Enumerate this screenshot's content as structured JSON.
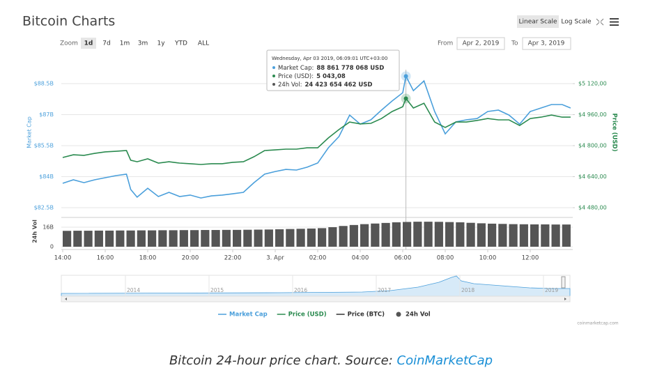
{
  "header": {
    "title": "Bitcoin Charts",
    "scales": [
      "Linear Scale",
      "Log Scale"
    ],
    "zoom_label": "Zoom",
    "zoom": [
      "1d",
      "7d",
      "1m",
      "3m",
      "1y",
      "YTD",
      "ALL"
    ],
    "from_label": "From",
    "from": "Apr 2, 2019",
    "to_label": "To",
    "to": "Apr 3, 2019"
  },
  "chart_data": {
    "type": "line",
    "ylabel": "Market Cap",
    "y2label": "Price (USD)",
    "y3label": "24h Vol",
    "x": [
      0,
      0.5,
      1,
      1.5,
      2,
      2.5,
      3,
      3.2,
      3.5,
      4,
      4.5,
      5,
      5.5,
      6,
      6.5,
      7,
      7.5,
      8,
      8.5,
      9,
      9.5,
      10,
      10.5,
      11,
      11.5,
      12,
      12.5,
      13,
      13.5,
      14,
      14.5,
      15,
      15.5,
      16,
      16.15,
      16.5,
      17,
      17.5,
      18,
      18.5,
      19,
      19.5,
      20,
      20.5,
      21,
      21.5,
      22,
      22.5,
      23,
      23.5,
      23.9
    ],
    "xlim": [
      0,
      24
    ],
    "xticks": [
      {
        "value": 0,
        "label": "14:00"
      },
      {
        "value": 2,
        "label": "16:00"
      },
      {
        "value": 4,
        "label": "18:00"
      },
      {
        "value": 6,
        "label": "20:00"
      },
      {
        "value": 8,
        "label": "22:00"
      },
      {
        "value": 10,
        "label": "3. Apr"
      },
      {
        "value": 12,
        "label": "02:00"
      },
      {
        "value": 14,
        "label": "04:00"
      },
      {
        "value": 16,
        "label": "06:00"
      },
      {
        "value": 18,
        "label": "08:00"
      },
      {
        "value": 20,
        "label": "10:00"
      },
      {
        "value": 22,
        "label": "12:00"
      }
    ],
    "ylim": [
      82.5,
      88.5
    ],
    "yticks": [
      {
        "value": 82.5,
        "label": "$82.5B"
      },
      {
        "value": 84,
        "label": "$84B"
      },
      {
        "value": 85.5,
        "label": "$85.5B"
      },
      {
        "value": 87,
        "label": "$87B"
      },
      {
        "value": 88.5,
        "label": "$88.5B"
      }
    ],
    "y2lim": [
      4480,
      5120
    ],
    "y2ticks": [
      {
        "value": 4480,
        "label": "$4 480,00"
      },
      {
        "value": 4640,
        "label": "$4 640,00"
      },
      {
        "value": 4800,
        "label": "$4 800,00"
      },
      {
        "value": 4960,
        "label": "$4 960,00"
      },
      {
        "value": 5120,
        "label": "$5 120,00"
      }
    ],
    "y3lim": [
      0,
      16
    ],
    "y3ticks": [
      0,
      {
        "value": 16,
        "label": "16B"
      }
    ],
    "grid": true,
    "series": [
      {
        "name": "Market Cap",
        "color": "#4a9fdb",
        "axis": "y",
        "values": [
          83.68,
          83.85,
          83.71,
          83.85,
          83.95,
          84.05,
          84.12,
          83.38,
          83.01,
          83.44,
          83.04,
          83.24,
          83.04,
          83.11,
          82.97,
          83.07,
          83.11,
          83.17,
          83.24,
          83.71,
          84.12,
          84.25,
          84.35,
          84.32,
          84.46,
          84.66,
          85.4,
          85.94,
          86.98,
          86.54,
          86.75,
          87.22,
          87.66,
          88.06,
          88.86,
          88.16,
          88.63,
          87.15,
          86.07,
          86.65,
          86.75,
          86.81,
          87.15,
          87.22,
          86.98,
          86.54,
          87.15,
          87.32,
          87.49,
          87.49,
          87.32
        ]
      },
      {
        "name": "Price (USD)",
        "color": "#2a8a4f",
        "axis": "y2",
        "values": [
          4739,
          4753,
          4750,
          4760,
          4768,
          4771,
          4775,
          4725,
          4717,
          4732,
          4710,
          4717,
          4710,
          4707,
          4703,
          4707,
          4707,
          4714,
          4717,
          4743,
          4775,
          4778,
          4782,
          4782,
          4789,
          4789,
          4840,
          4883,
          4922,
          4912,
          4915,
          4940,
          4976,
          5001,
          5043.08,
          4994,
          5019,
          4922,
          4894,
          4922,
          4922,
          4930,
          4940,
          4933,
          4933,
          4904,
          4940,
          4947,
          4958,
          4947,
          4947
        ]
      },
      {
        "name": "Price (BTC)",
        "color": "#333333"
      },
      {
        "name": "24h Vol",
        "color": "#555555",
        "axis": "y3",
        "type": "bar",
        "x": [
          0,
          0.5,
          1,
          1.5,
          2,
          2.5,
          3,
          3.5,
          4,
          4.5,
          5,
          5.5,
          6,
          6.5,
          7,
          7.5,
          8,
          8.5,
          9,
          9.5,
          10,
          10.5,
          11,
          11.5,
          12,
          12.5,
          13,
          13.5,
          14,
          14.5,
          15,
          15.5,
          16,
          16.5,
          17,
          17.5,
          18,
          18.5,
          19,
          19.5,
          20,
          20.5,
          21,
          21.5,
          22,
          22.5,
          23,
          23.5
        ],
        "values": [
          13.0,
          13.1,
          13.1,
          13.2,
          13.2,
          13.3,
          13.3,
          13.4,
          13.4,
          13.5,
          13.5,
          13.6,
          13.6,
          13.7,
          13.7,
          13.8,
          13.8,
          13.9,
          14.0,
          14.1,
          14.3,
          14.5,
          14.7,
          14.9,
          15.2,
          16.0,
          17.0,
          17.8,
          18.5,
          19.0,
          19.5,
          20.0,
          20.3,
          20.5,
          20.5,
          20.4,
          20.2,
          20.0,
          19.6,
          19.2,
          18.9,
          18.7,
          18.5,
          18.4,
          18.3,
          18.3,
          18.2,
          18.2
        ]
      }
    ],
    "tooltip": {
      "point": 34,
      "date": "Wednesday, Apr 03 2019, 06:09:01 UTC+03:00",
      "items": [
        {
          "label": "Market Cap:",
          "value": "88 861 778 068 USD"
        },
        {
          "label": "Price (USD):",
          "value": "5 043,08"
        },
        {
          "label": "24h Vol:",
          "value": "24 423 654 462 USD"
        }
      ]
    }
  },
  "navigator": {
    "years": [
      "2014",
      "2015",
      "2016",
      "2017",
      "2018",
      "2019"
    ]
  },
  "credit": "coinmarketcap.com",
  "caption": {
    "text": "Bitcoin 24-hour price chart. Source: ",
    "link": "CoinMarketCap"
  }
}
